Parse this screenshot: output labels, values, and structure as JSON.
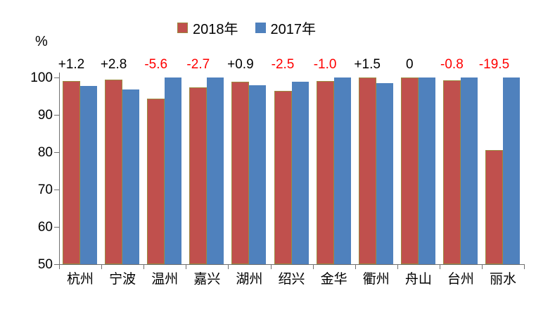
{
  "chart_data": {
    "type": "bar",
    "title": "",
    "ylabel": "%",
    "ylim": [
      50,
      100
    ],
    "yticks": [
      50,
      60,
      70,
      80,
      90,
      100
    ],
    "grid": false,
    "legend_position": "top-center",
    "categories": [
      "杭州",
      "宁波",
      "温州",
      "嘉兴",
      "湖州",
      "绍兴",
      "金华",
      "衢州",
      "舟山",
      "台州",
      "丽水"
    ],
    "series": [
      {
        "name": "2018年",
        "color": "#C0504D",
        "border_color": "#9C8A3F",
        "values": [
          99.0,
          99.5,
          94.4,
          97.3,
          98.8,
          96.4,
          99.0,
          100,
          100,
          99.2,
          80.5
        ]
      },
      {
        "name": "2017年",
        "color": "#4F81BD",
        "border_color": "#4F81BD",
        "values": [
          97.8,
          96.7,
          100,
          100,
          97.9,
          98.9,
          100,
          98.5,
          100,
          100,
          100
        ]
      }
    ],
    "diff_labels": [
      {
        "text": "+1.2",
        "color": "#000000"
      },
      {
        "text": "+2.8",
        "color": "#000000"
      },
      {
        "text": "-5.6",
        "color": "#FF0000"
      },
      {
        "text": "-2.7",
        "color": "#FF0000"
      },
      {
        "text": "+0.9",
        "color": "#000000"
      },
      {
        "text": "-2.5",
        "color": "#FF0000"
      },
      {
        "text": "-1.0",
        "color": "#FF0000"
      },
      {
        "text": "+1.5",
        "color": "#000000"
      },
      {
        "text": "0",
        "color": "#000000"
      },
      {
        "text": "-0.8",
        "color": "#FF0000"
      },
      {
        "text": "-19.5",
        "color": "#FF0000"
      }
    ]
  }
}
